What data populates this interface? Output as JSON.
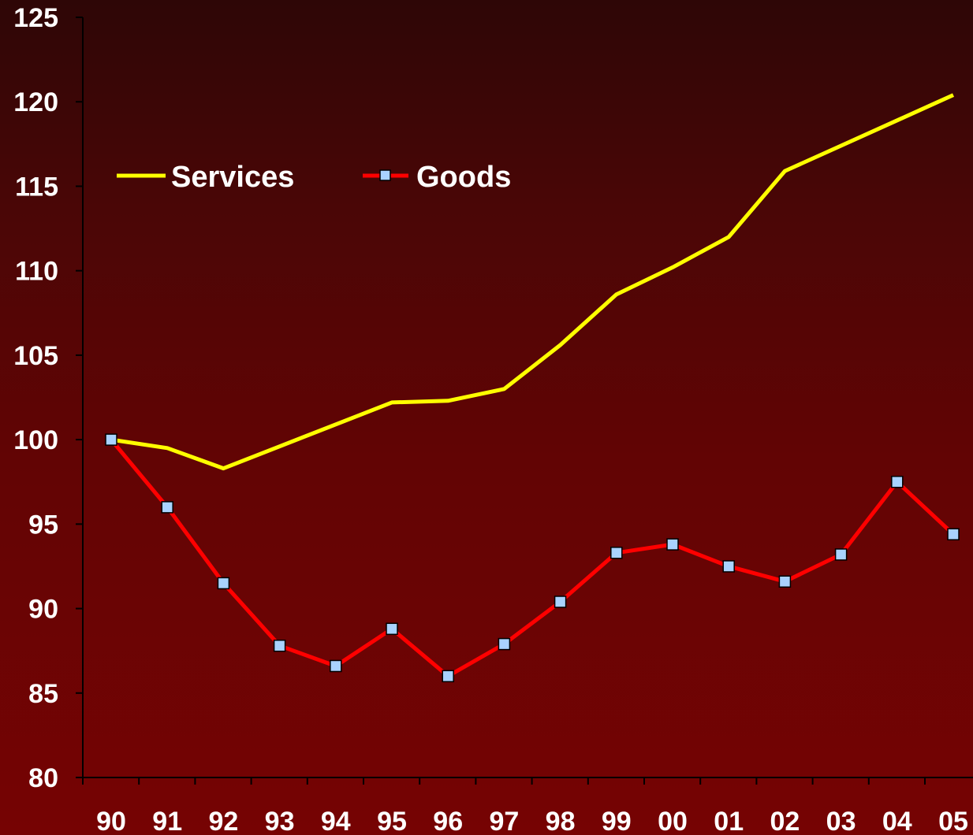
{
  "chart_data": {
    "type": "line",
    "title": "",
    "xlabel": "",
    "ylabel": "",
    "categories": [
      "90",
      "91",
      "92",
      "93",
      "94",
      "95",
      "96",
      "97",
      "98",
      "99",
      "00",
      "01",
      "02",
      "03",
      "04",
      "05"
    ],
    "ylim": [
      80,
      125
    ],
    "yticks": [
      "80",
      "85",
      "90",
      "95",
      "100",
      "105",
      "110",
      "115",
      "120",
      "125"
    ],
    "grid": false,
    "legend": "top-left",
    "series": [
      {
        "name": "Services",
        "color": "#ffff00",
        "marker": "none",
        "values": [
          100.0,
          99.5,
          98.3,
          99.6,
          100.9,
          102.2,
          102.3,
          103.0,
          105.6,
          108.6,
          110.2,
          112.0,
          115.9,
          117.4,
          118.9,
          120.4
        ]
      },
      {
        "name": "Goods",
        "color": "#ff0000",
        "marker": "square",
        "marker_color": "#a9d3ff",
        "values": [
          100.0,
          96.0,
          91.5,
          87.8,
          86.6,
          88.8,
          86.0,
          87.9,
          90.4,
          93.3,
          93.8,
          92.5,
          91.6,
          93.2,
          97.5,
          94.4
        ]
      }
    ]
  }
}
